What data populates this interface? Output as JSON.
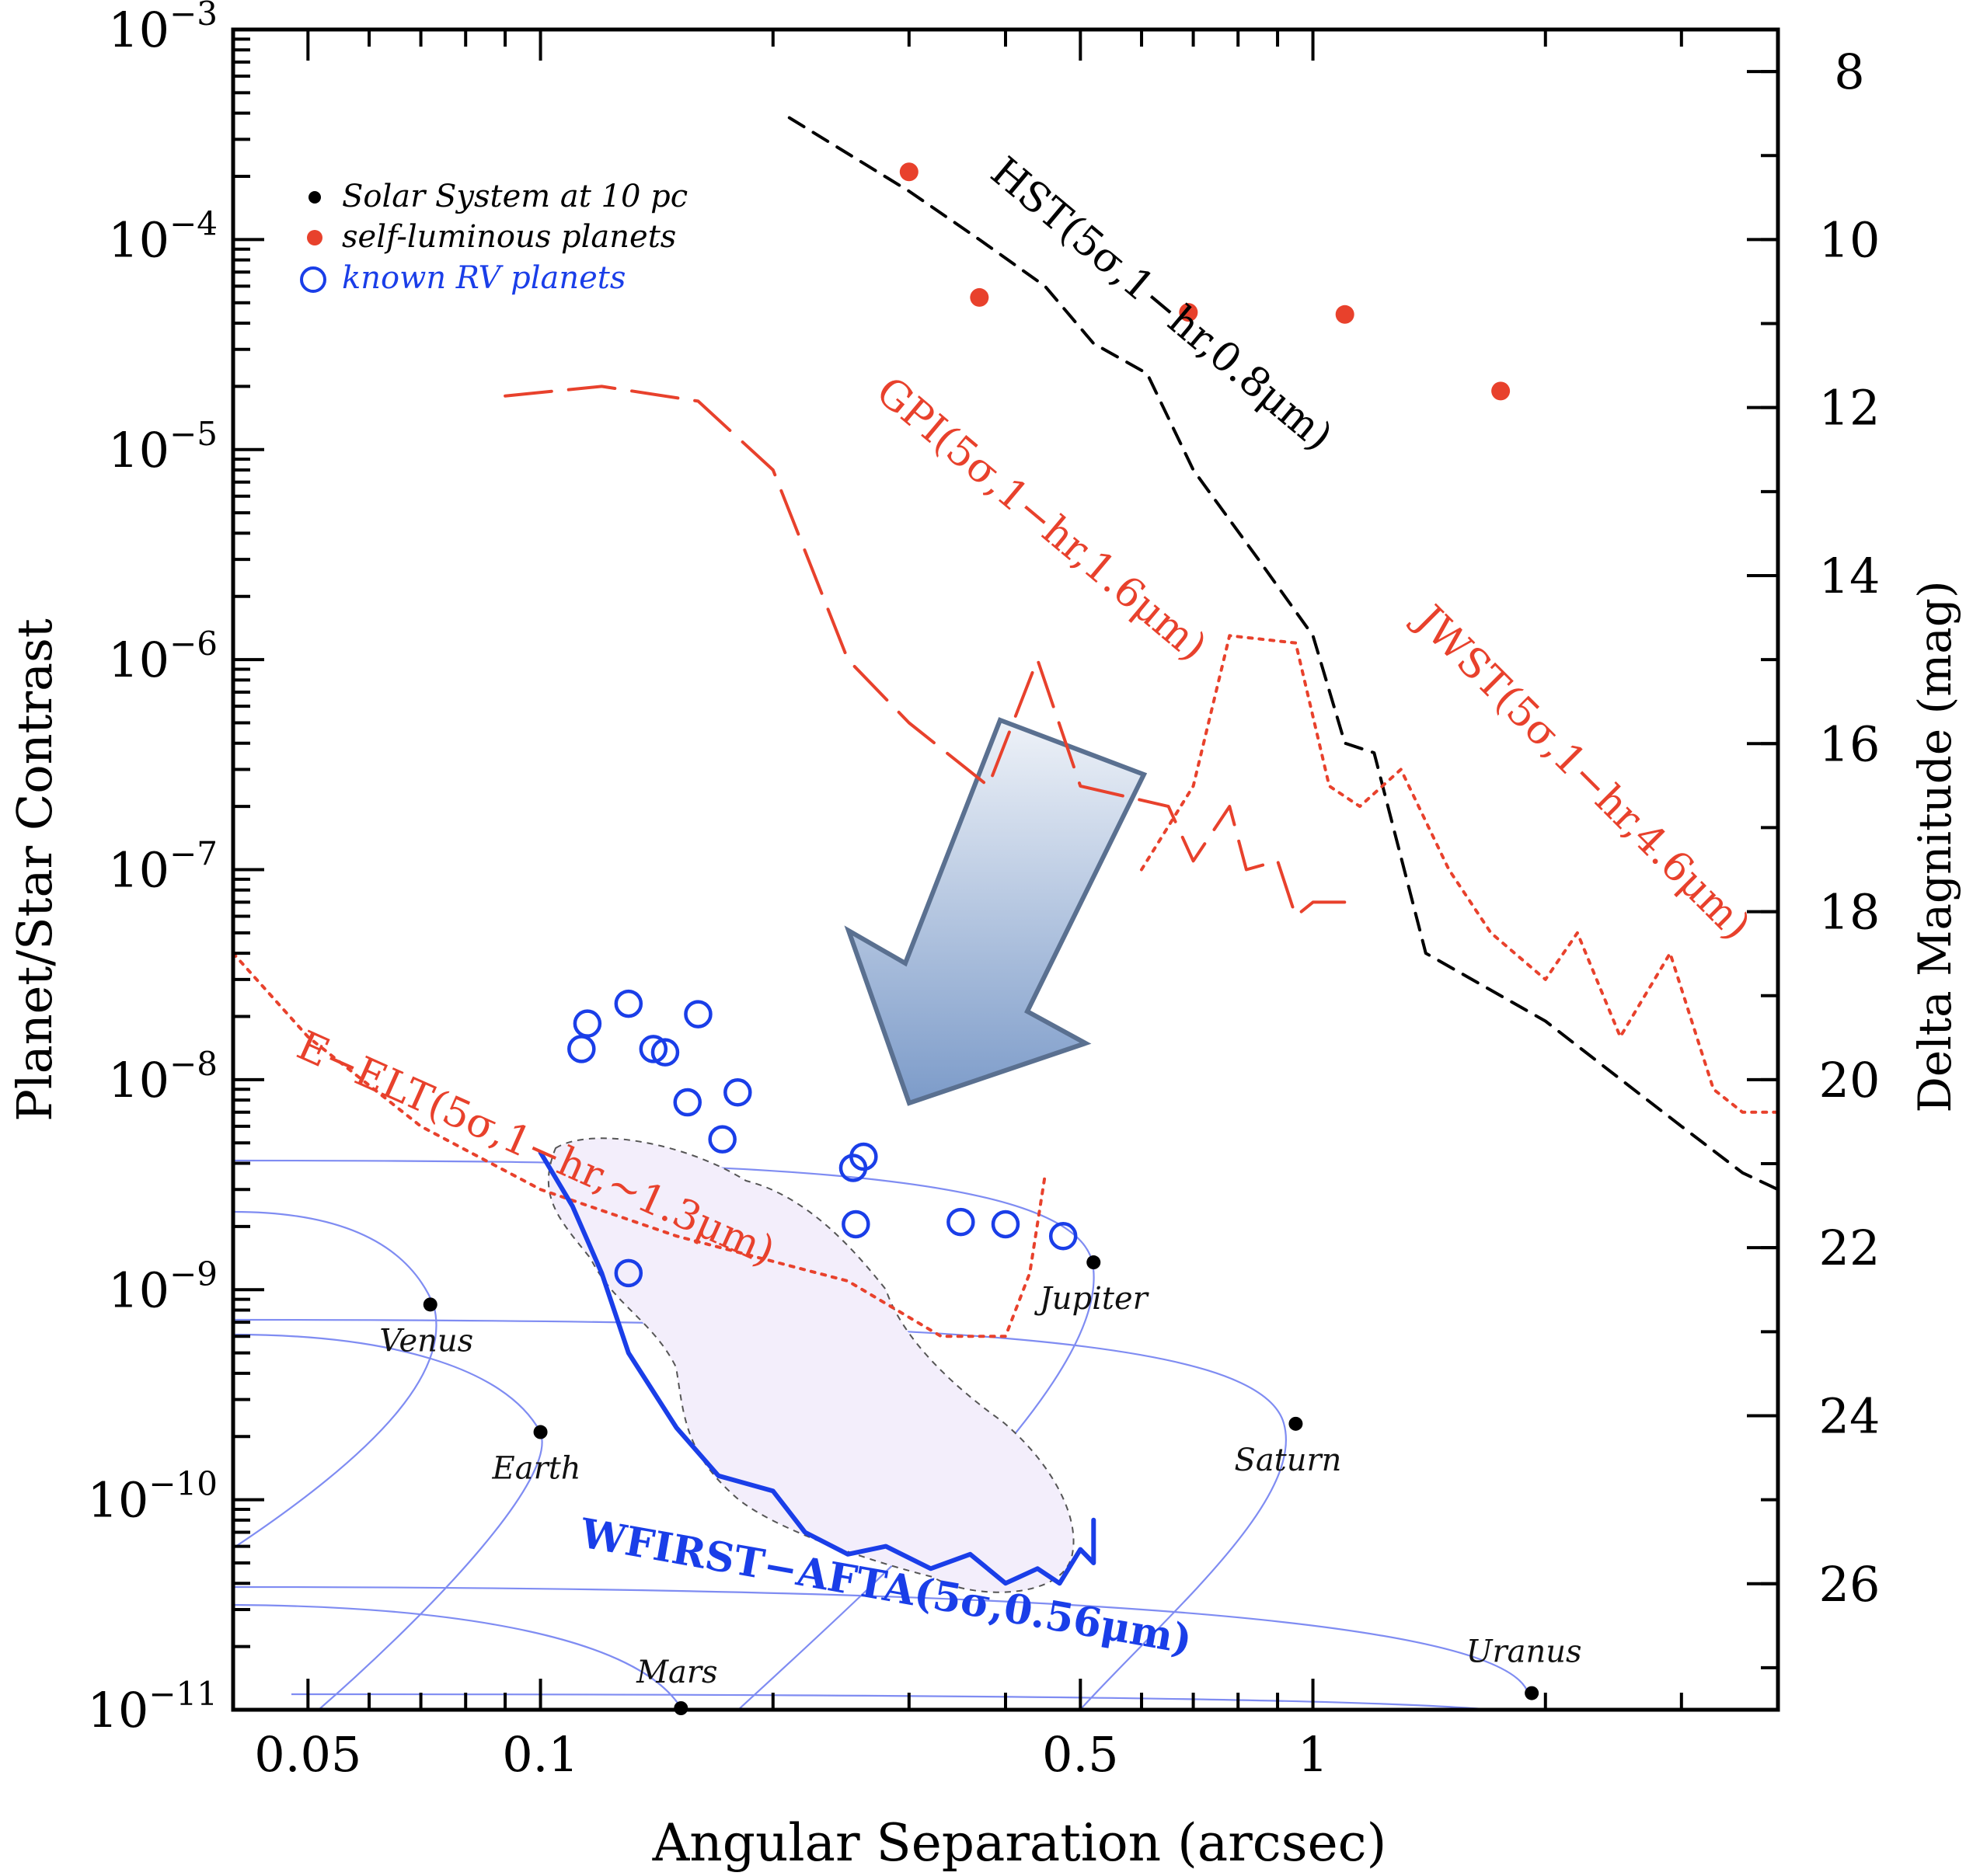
{
  "colors": {
    "red": "#e8412c",
    "blue": "#1a3ee8",
    "lightblue": "#7f8cf2",
    "black": "#000000",
    "pink": "#f3eefb",
    "arrow_top": "#eef2f8",
    "arrow_bottom": "#7c9bc9",
    "arrow_edge": "#5a7090"
  },
  "chart_data": {
    "type": "scatter",
    "xlabel": "Angular Separation (arcsec)",
    "ylabel": "Planet/Star Contrast",
    "ylabel_right": "Delta Magnitude (mag)",
    "xscale": "log",
    "yscale": "log",
    "xlim": [
      0.04,
      4.0
    ],
    "ylim": [
      1e-11,
      0.001
    ],
    "x_ticks": [
      {
        "value": 0.05,
        "label": "0.05"
      },
      {
        "value": 0.1,
        "label": "0.1"
      },
      {
        "value": 0.5,
        "label": "0.5"
      },
      {
        "value": 1,
        "label": "1"
      }
    ],
    "y_ticks": [
      {
        "exp": -3,
        "base": "10",
        "sup": "−3"
      },
      {
        "exp": -4,
        "base": "10",
        "sup": "−4"
      },
      {
        "exp": -5,
        "base": "10",
        "sup": "−5"
      },
      {
        "exp": -6,
        "base": "10",
        "sup": "−6"
      },
      {
        "exp": -7,
        "base": "10",
        "sup": "−7"
      },
      {
        "exp": -8,
        "base": "10",
        "sup": "−8"
      },
      {
        "exp": -9,
        "base": "10",
        "sup": "−9"
      },
      {
        "exp": -10,
        "base": "10",
        "sup": "−10"
      },
      {
        "exp": -11,
        "base": "10",
        "sup": "−11"
      }
    ],
    "right_ticks": [
      {
        "mag": 8,
        "label": "8"
      },
      {
        "mag": 10,
        "label": "10"
      },
      {
        "mag": 12,
        "label": "12"
      },
      {
        "mag": 14,
        "label": "14"
      },
      {
        "mag": 16,
        "label": "16"
      },
      {
        "mag": 18,
        "label": "18"
      },
      {
        "mag": 20,
        "label": "20"
      },
      {
        "mag": 22,
        "label": "22"
      },
      {
        "mag": 24,
        "label": "24"
      },
      {
        "mag": 26,
        "label": "26"
      }
    ],
    "legend": {
      "position": "top-left",
      "entries": [
        {
          "label": "Solar System at 10 pc",
          "marker": "black-dot"
        },
        {
          "label": "self-luminous planets",
          "marker": "red-dot"
        },
        {
          "label": "known RV planets",
          "marker": "blue-circle"
        }
      ]
    },
    "solar_system": [
      {
        "name": "Venus",
        "x": 0.072,
        "y": 8.5e-10,
        "label": "Venus"
      },
      {
        "name": "Earth",
        "x": 0.1,
        "y": 2.1e-10,
        "label": "Earth"
      },
      {
        "name": "Mars",
        "x": 0.152,
        "y": 1e-11,
        "label": "Mars"
      },
      {
        "name": "Jupiter",
        "x": 0.52,
        "y": 1.35e-09,
        "label": "Jupiter"
      },
      {
        "name": "Saturn",
        "x": 0.95,
        "y": 2.3e-10,
        "label": "Saturn"
      },
      {
        "name": "Uranus",
        "x": 1.92,
        "y": 1.2e-11,
        "label": "Uranus"
      }
    ],
    "self_luminous": [
      {
        "x": 0.3,
        "y": 0.00021
      },
      {
        "x": 0.37,
        "y": 5.3e-05
      },
      {
        "x": 0.69,
        "y": 4.5e-05
      },
      {
        "x": 1.1,
        "y": 4.4e-05
      },
      {
        "x": 1.75,
        "y": 1.9e-05
      }
    ],
    "rv_planets": [
      {
        "x": 0.115,
        "y": 1.85e-08
      },
      {
        "x": 0.113,
        "y": 1.4e-08
      },
      {
        "x": 0.13,
        "y": 2.3e-08
      },
      {
        "x": 0.14,
        "y": 1.4e-08
      },
      {
        "x": 0.145,
        "y": 1.35e-08
      },
      {
        "x": 0.16,
        "y": 2.05e-08
      },
      {
        "x": 0.155,
        "y": 7.8e-09
      },
      {
        "x": 0.18,
        "y": 8.7e-09
      },
      {
        "x": 0.172,
        "y": 5.2e-09
      },
      {
        "x": 0.254,
        "y": 3.8e-09
      },
      {
        "x": 0.262,
        "y": 4.3e-09
      },
      {
        "x": 0.256,
        "y": 2.05e-09
      },
      {
        "x": 0.35,
        "y": 2.1e-09
      },
      {
        "x": 0.4,
        "y": 2.05e-09
      },
      {
        "x": 0.475,
        "y": 1.8e-09
      },
      {
        "x": 0.13,
        "y": 1.2e-09
      }
    ],
    "curves": [
      {
        "name": "HST",
        "label": "HST(5σ,1−hr,0.8μm)",
        "color": "black",
        "style": "dashed",
        "label_at": [
          0.38,
          0.0002
        ],
        "label_angle": 40,
        "points": [
          [
            0.21,
            0.00038
          ],
          [
            0.3,
            0.00017
          ],
          [
            0.37,
            0.0001
          ],
          [
            0.45,
            6e-05
          ],
          [
            0.52,
            3.2e-05
          ],
          [
            0.61,
            2.3e-05
          ],
          [
            0.7,
            8e-06
          ],
          [
            0.85,
            3e-06
          ],
          [
            1.0,
            1.3e-06
          ],
          [
            1.1,
            4e-07
          ],
          [
            1.2,
            3.6e-07
          ],
          [
            1.4,
            4e-08
          ],
          [
            2.0,
            1.9e-08
          ],
          [
            2.6,
            9e-09
          ],
          [
            3.0,
            6e-09
          ],
          [
            3.6,
            3.6e-09
          ],
          [
            4.0,
            3e-09
          ]
        ]
      },
      {
        "name": "GPI",
        "label": "GPI(5σ,1−hr,1.6μm)",
        "color": "red",
        "style": "longdash",
        "label_at": [
          0.27,
          1.8e-05
        ],
        "label_angle": 40,
        "points": [
          [
            0.09,
            1.8e-05
          ],
          [
            0.12,
            2e-05
          ],
          [
            0.16,
            1.7e-05
          ],
          [
            0.2,
            8e-06
          ],
          [
            0.25,
            1e-06
          ],
          [
            0.3,
            5e-07
          ],
          [
            0.38,
            2.5e-07
          ],
          [
            0.44,
            1e-06
          ],
          [
            0.5,
            2.5e-07
          ],
          [
            0.65,
            2e-07
          ],
          [
            0.7,
            1.1e-07
          ],
          [
            0.78,
            2e-07
          ],
          [
            0.82,
            1e-07
          ],
          [
            0.9,
            1.1e-07
          ],
          [
            0.95,
            6e-08
          ],
          [
            1.0,
            7e-08
          ],
          [
            1.1,
            7e-08
          ]
        ]
      },
      {
        "name": "JWST",
        "label": "JWST(5σ,1−hr,4.6μm)",
        "color": "red",
        "style": "dotted",
        "label_at": [
          1.35,
          1.5e-06
        ],
        "label_angle": 45,
        "points": [
          [
            0.6,
            1e-07
          ],
          [
            0.7,
            2.5e-07
          ],
          [
            0.78,
            1.3e-06
          ],
          [
            0.95,
            1.2e-06
          ],
          [
            1.05,
            2.5e-07
          ],
          [
            1.15,
            2e-07
          ],
          [
            1.3,
            3e-07
          ],
          [
            1.5,
            1e-07
          ],
          [
            1.7,
            5e-08
          ],
          [
            2.0,
            3e-08
          ],
          [
            2.2,
            5e-08
          ],
          [
            2.5,
            1.6e-08
          ],
          [
            2.9,
            4e-08
          ],
          [
            3.3,
            9e-09
          ],
          [
            3.6,
            7e-09
          ],
          [
            4.0,
            7e-09
          ]
        ]
      },
      {
        "name": "E-ELT",
        "label": "E−ELT(5σ,1−hr,~1.3μm)",
        "color": "red",
        "style": "dotted",
        "label_at": [
          0.048,
          1.3e-08
        ],
        "label_angle": 24,
        "points": [
          [
            0.04,
            4e-08
          ],
          [
            0.05,
            1.6e-08
          ],
          [
            0.07,
            6e-09
          ],
          [
            0.1,
            3e-09
          ],
          [
            0.15,
            1.8e-09
          ],
          [
            0.25,
            1.1e-09
          ],
          [
            0.33,
            6e-10
          ],
          [
            0.4,
            6e-10
          ],
          [
            0.43,
            1.2e-09
          ],
          [
            0.45,
            3.5e-09
          ]
        ]
      },
      {
        "name": "WFIRST-AFTA",
        "label": "WFIRST−AFTA(5σ,0.56μm)",
        "color": "blue",
        "style": "solid",
        "label_at": [
          0.112,
          6e-11
        ],
        "label_angle": 10,
        "points": [
          [
            0.1,
            4.5e-09
          ],
          [
            0.11,
            2.5e-09
          ],
          [
            0.12,
            1.2e-09
          ],
          [
            0.13,
            5e-10
          ],
          [
            0.15,
            2.2e-10
          ],
          [
            0.17,
            1.3e-10
          ],
          [
            0.2,
            1.1e-10
          ],
          [
            0.22,
            7e-11
          ],
          [
            0.25,
            5.5e-11
          ],
          [
            0.28,
            6e-11
          ],
          [
            0.32,
            4.7e-11
          ],
          [
            0.36,
            5.5e-11
          ],
          [
            0.4,
            4e-11
          ],
          [
            0.44,
            4.7e-11
          ],
          [
            0.47,
            4e-11
          ],
          [
            0.5,
            5.8e-11
          ],
          [
            0.52,
            5e-11
          ],
          [
            0.52,
            8e-11
          ]
        ]
      }
    ],
    "title": ""
  }
}
